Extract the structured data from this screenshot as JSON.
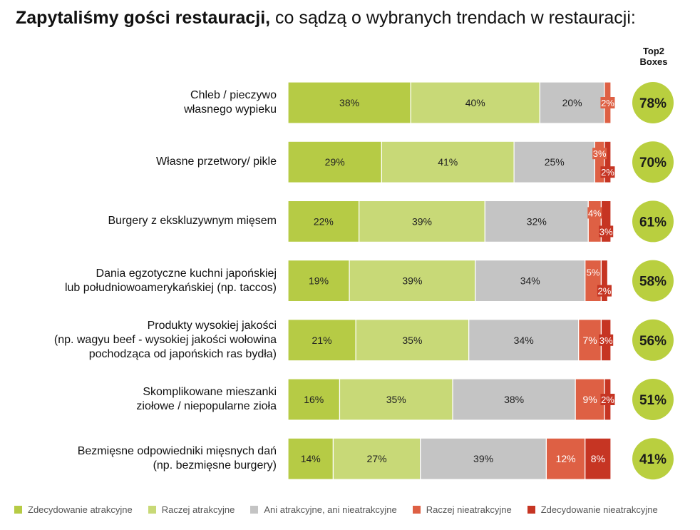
{
  "title": {
    "bold": "Zapytaliśmy gości restauracji,",
    "rest": " co sądzą o wybranych trendach w restauracji:"
  },
  "top2_header": "Top2\nBoxes",
  "colors": {
    "s1": "#b6cb45",
    "s2": "#c8d977",
    "s3": "#c4c4c4",
    "s4": "#de6044",
    "s5": "#c63523",
    "circle": "#b9cf3f"
  },
  "legend": [
    "Zdecydowanie atrakcyjne",
    "Raczej atrakcyjne",
    "Ani atrakcyjne, ani nieatrakcyjne",
    "Raczej nieatrakcyjne",
    "Zdecydowanie nieatrakcyjne"
  ],
  "chart_data": {
    "type": "bar",
    "orientation": "horizontal",
    "stacked": "100%",
    "categories": [
      "Chleb / pieczywo\nwłasnego wypieku",
      "Własne przetwory/ pikle",
      "Burgery z ekskluzywnym mięsem",
      "Dania egzotyczne kuchni japońskiej\nlub południowoamerykańskiej (np. taccos)",
      "Produkty wysokiej jakości\n(np. wagyu beef - wysokiej jakości wołowina\npochodząca od japońskich ras bydła)",
      "Skomplikowane mieszanki\nziołowe / niepopularne zioła",
      "Bezmięsne odpowiedniki mięsnych dań\n(np. bezmięsne burgery)"
    ],
    "series": [
      {
        "name": "Zdecydowanie atrakcyjne",
        "values": [
          38,
          29,
          22,
          19,
          21,
          16,
          14
        ]
      },
      {
        "name": "Raczej atrakcyjne",
        "values": [
          40,
          41,
          39,
          39,
          35,
          35,
          27
        ]
      },
      {
        "name": "Ani atrakcyjne, ani nieatrakcyjne",
        "values": [
          20,
          25,
          32,
          34,
          34,
          38,
          39
        ]
      },
      {
        "name": "Raczej nieatrakcyjne",
        "values": [
          2,
          3,
          4,
          5,
          7,
          9,
          12
        ]
      },
      {
        "name": "Zdecydowanie nieatrakcyjne",
        "values": [
          0,
          2,
          3,
          2,
          3,
          2,
          8
        ]
      }
    ],
    "top2_boxes": [
      78,
      70,
      61,
      58,
      56,
      51,
      41
    ],
    "value_suffix": "%",
    "legend_position": "bottom"
  }
}
